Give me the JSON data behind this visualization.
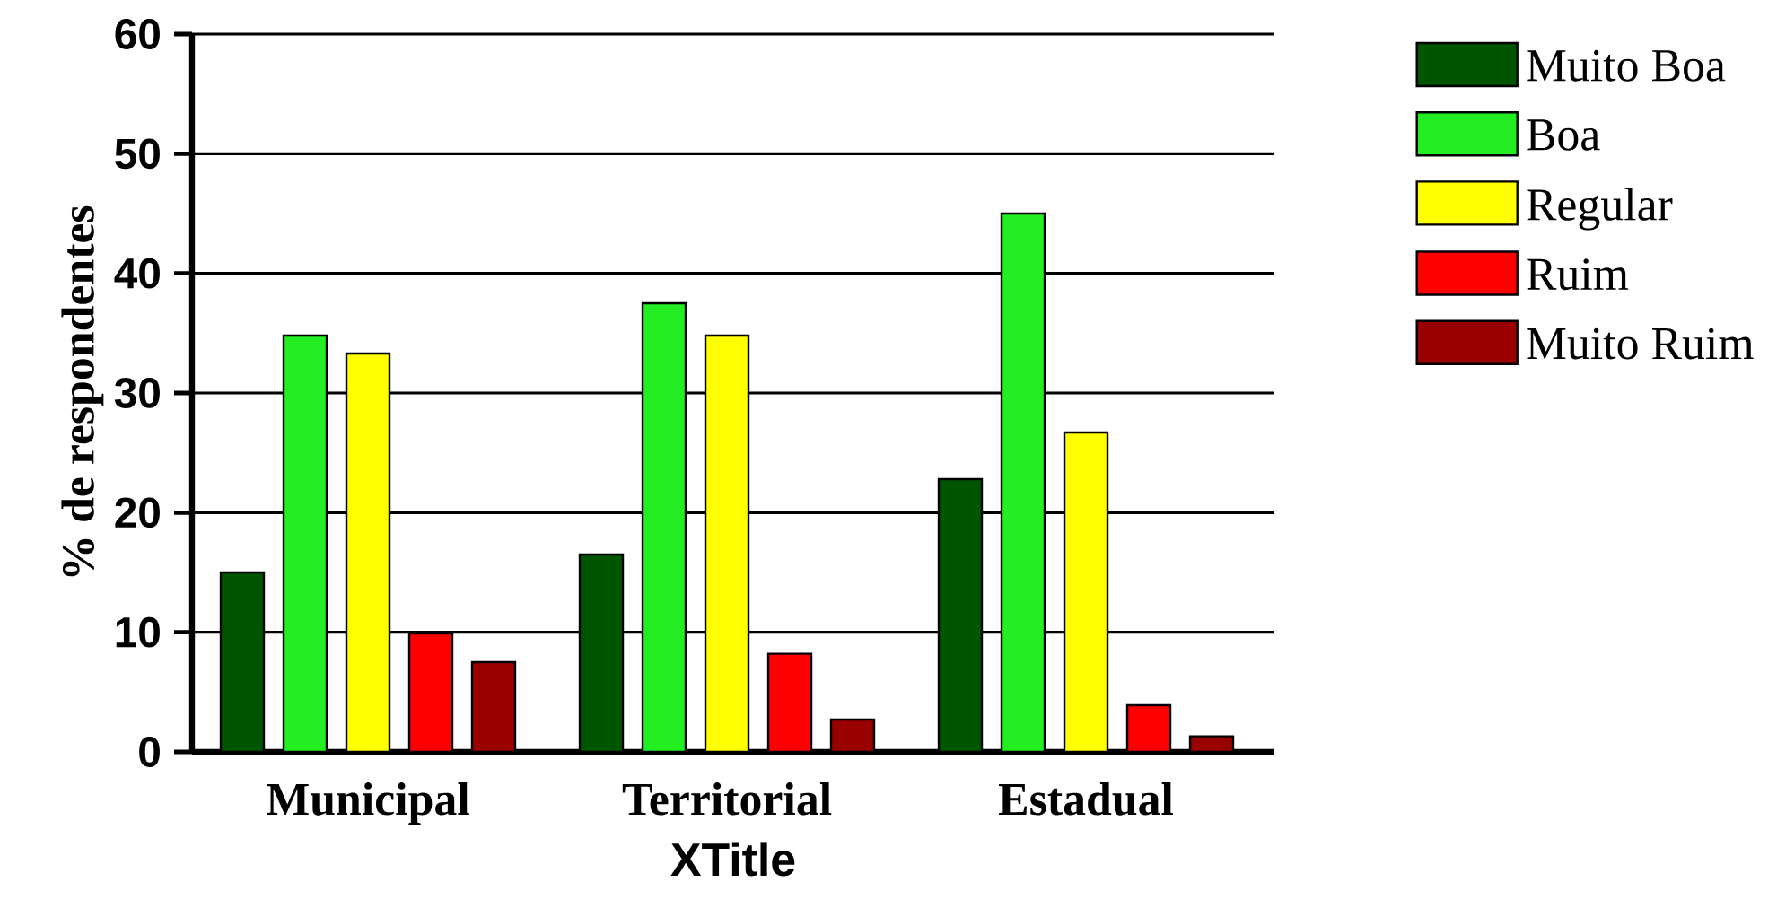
{
  "chart_data": {
    "type": "bar",
    "xlabel": "XTitle",
    "ylabel": "% de respondentes",
    "categories": [
      "Municipal",
      "Territorial",
      "Estadual"
    ],
    "series": [
      {
        "name": "Muito Boa",
        "color": "#005500",
        "values": [
          15.0,
          16.5,
          22.8
        ]
      },
      {
        "name": "Boa",
        "color": "#22ee22",
        "values": [
          34.8,
          37.5,
          45.0
        ]
      },
      {
        "name": "Regular",
        "color": "#ffff00",
        "values": [
          33.3,
          34.8,
          26.7
        ]
      },
      {
        "name": "Ruim",
        "color": "#ff0000",
        "values": [
          9.9,
          8.2,
          3.9
        ]
      },
      {
        "name": "Muito Ruim",
        "color": "#990000",
        "values": [
          7.5,
          2.7,
          1.3
        ]
      }
    ],
    "ylim": [
      0,
      60
    ],
    "yticks": [
      0,
      10,
      20,
      30,
      40,
      50,
      60
    ],
    "grid": "y",
    "legend": "right"
  }
}
